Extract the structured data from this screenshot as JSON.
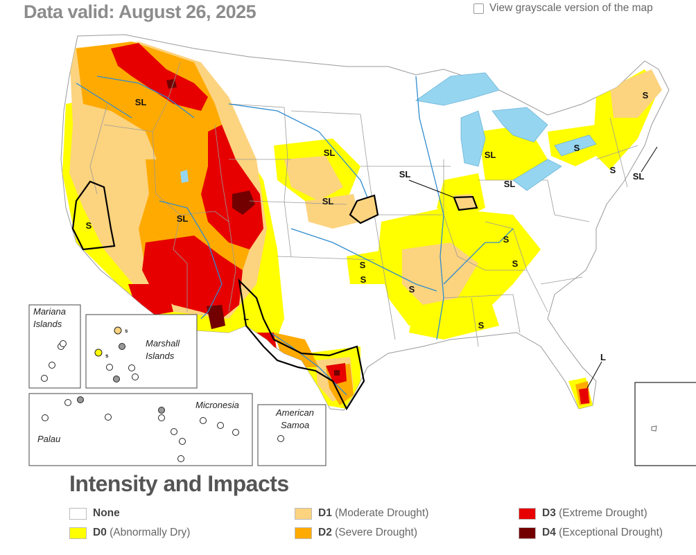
{
  "header": {
    "title": "Data valid: August 26, 2025",
    "grayscale_label": "View grayscale version of the map"
  },
  "colors": {
    "none": "#ffffff",
    "d0": "#ffff00",
    "d1": "#fcd37f",
    "d2": "#ffaa00",
    "d3": "#e60000",
    "d4": "#730000",
    "water": "#96d5f0",
    "border": "#999999"
  },
  "map_labels": {
    "impacts": [
      "SL",
      "SL",
      "SL",
      "S",
      "SL",
      "SL",
      "SL",
      "SL",
      "S",
      "S",
      "SL",
      "S",
      "S",
      "S",
      "S",
      "S",
      "S",
      "L",
      "L",
      "S"
    ],
    "insets": {
      "mariana": "Mariana Islands",
      "marshall": "Marshall Islands",
      "marshall_s1": "s",
      "marshall_s2": "s",
      "micronesia": "Micronesia",
      "palau": "Palau",
      "samoa": "American Samoa"
    }
  },
  "legend": {
    "title": "Intensity and Impacts",
    "items": [
      {
        "code": "None",
        "label": "",
        "color_key": "none"
      },
      {
        "code": "D0",
        "label": "(Abnormally Dry)",
        "color_key": "d0"
      },
      {
        "code": "D1",
        "label": "(Moderate Drought)",
        "color_key": "d1"
      },
      {
        "code": "D2",
        "label": "(Severe Drought)",
        "color_key": "d2"
      },
      {
        "code": "D3",
        "label": "(Extreme Drought)",
        "color_key": "d3"
      },
      {
        "code": "D4",
        "label": "(Exceptional Drought)",
        "color_key": "d4"
      }
    ]
  }
}
